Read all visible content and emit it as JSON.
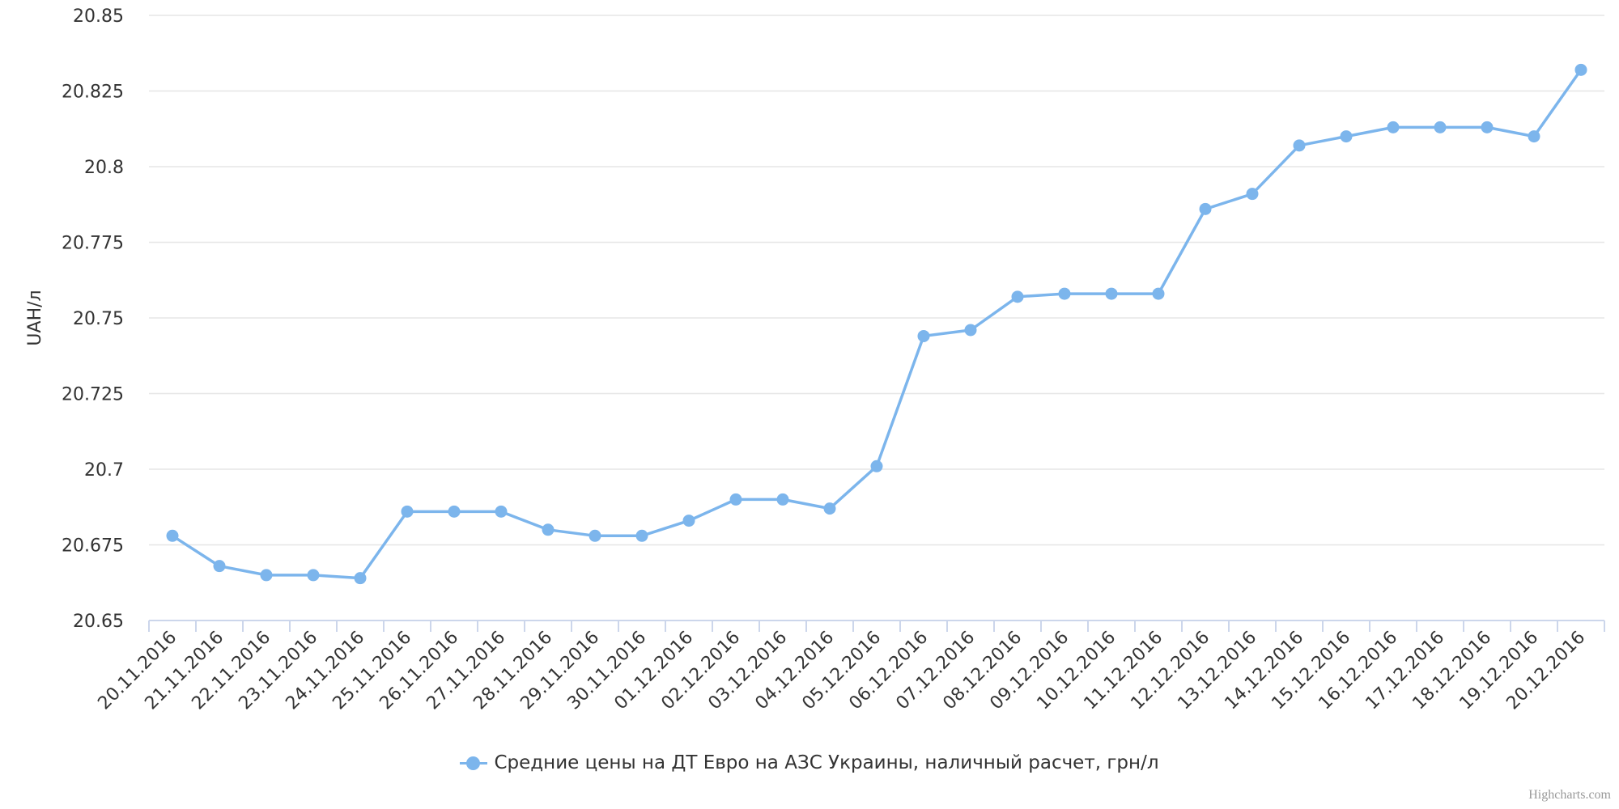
{
  "chart_data": {
    "type": "line",
    "title": "",
    "xlabel": "",
    "ylabel": "UAH/л",
    "ylim": [
      20.65,
      20.85
    ],
    "yticks": [
      "20.65",
      "20.675",
      "20.7",
      "20.725",
      "20.75",
      "20.775",
      "20.8",
      "20.825",
      "20.85"
    ],
    "grid": true,
    "legend_position": "bottom-center",
    "categories": [
      "20.11.2016",
      "21.11.2016",
      "22.11.2016",
      "23.11.2016",
      "24.11.2016",
      "25.11.2016",
      "26.11.2016",
      "27.11.2016",
      "28.11.2016",
      "29.11.2016",
      "30.11.2016",
      "01.12.2016",
      "02.12.2016",
      "03.12.2016",
      "04.12.2016",
      "05.12.2016",
      "06.12.2016",
      "07.12.2016",
      "08.12.2016",
      "09.12.2016",
      "10.12.2016",
      "11.12.2016",
      "12.12.2016",
      "13.12.2016",
      "14.12.2016",
      "15.12.2016",
      "16.12.2016",
      "17.12.2016",
      "18.12.2016",
      "19.12.2016",
      "20.12.2016"
    ],
    "series": [
      {
        "name": "Средние цены на ДТ Евро на АЗС Украины, наличный расчет, грн/л",
        "color": "#7cb5ec",
        "values": [
          20.678,
          20.668,
          20.665,
          20.665,
          20.664,
          20.686,
          20.686,
          20.686,
          20.68,
          20.678,
          20.678,
          20.683,
          20.69,
          20.69,
          20.687,
          20.701,
          20.744,
          20.746,
          20.757,
          20.758,
          20.758,
          20.758,
          20.786,
          20.791,
          20.807,
          20.81,
          20.813,
          20.813,
          20.813,
          20.81,
          20.832
        ]
      }
    ]
  },
  "credits": "Highcharts.com"
}
